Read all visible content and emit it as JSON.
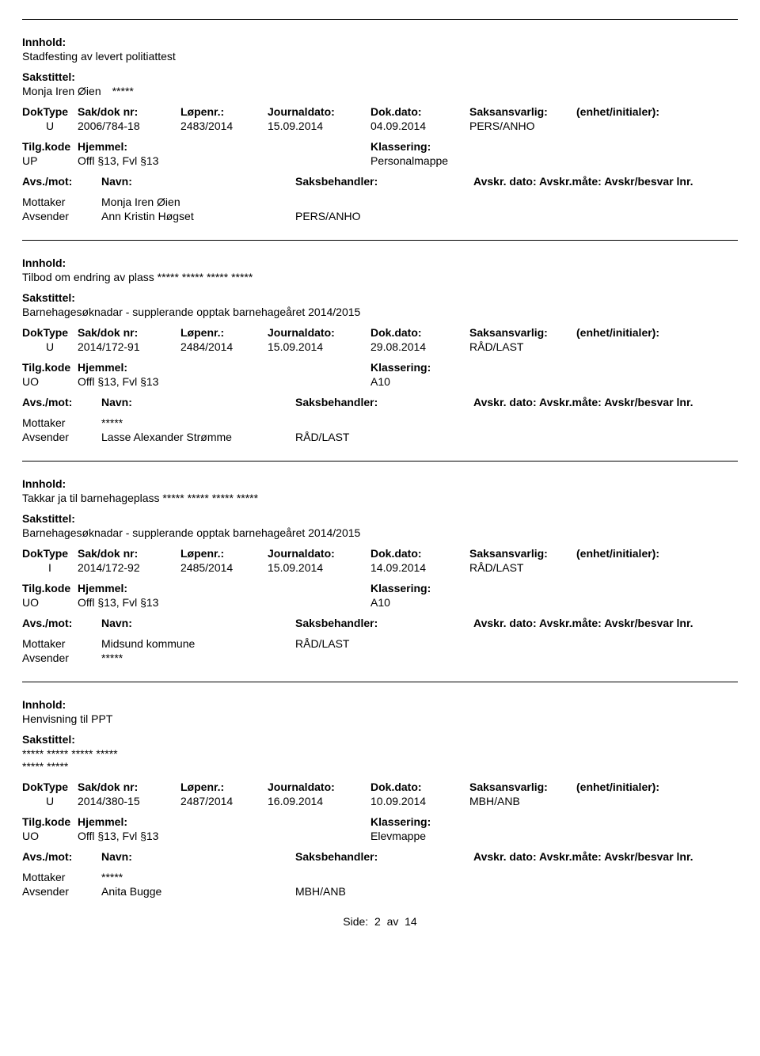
{
  "labels": {
    "innhold": "Innhold:",
    "sakstittel": "Sakstittel:",
    "doktype": "DokType",
    "sakdok": "Sak/dok nr:",
    "lopenr": "Løpenr.:",
    "journaldato": "Journaldato:",
    "dokdato": "Dok.dato:",
    "saksansvarlig": "Saksansvarlig:",
    "enhet": "(enhet/initialer):",
    "tilgkode": "Tilg.kode",
    "hjemmel": "Hjemmel:",
    "klassering": "Klassering:",
    "avsmot": "Avs./mot:",
    "navn": "Navn:",
    "saksbehandler": "Saksbehandler:",
    "avskr": "Avskr. dato: Avskr.måte: Avskr/besvar lnr.",
    "mottaker": "Mottaker",
    "avsender": "Avsender"
  },
  "records": [
    {
      "innhold": "Stadfesting av levert politiattest",
      "sakstittel": "Monja Iren Øien *****",
      "doktype": "U",
      "sakdok": "2006/784-18",
      "lopenr": "2483/2014",
      "journaldato": "15.09.2014",
      "dokdato": "04.09.2014",
      "saksansvarlig": "PERS/ANHO",
      "tilgkode": "UP",
      "hjemmel": "Offl §13, Fvl §13",
      "klassering": "Personalmappe",
      "people": [
        {
          "role": "Mottaker",
          "name": "Monja Iren Øien",
          "code": ""
        },
        {
          "role": "Avsender",
          "name": "Ann Kristin Høgset",
          "code": "PERS/ANHO"
        }
      ]
    },
    {
      "innhold": "Tilbod om endring av plass ***** ***** ***** *****",
      "sakstittel": "Barnehagesøknadar - supplerande opptak barnehageåret 2014/2015",
      "doktype": "U",
      "sakdok": "2014/172-91",
      "lopenr": "2484/2014",
      "journaldato": "15.09.2014",
      "dokdato": "29.08.2014",
      "saksansvarlig": "RÅD/LAST",
      "tilgkode": "UO",
      "hjemmel": "Offl §13, Fvl §13",
      "klassering": "A10",
      "people": [
        {
          "role": "Mottaker",
          "name": "*****",
          "code": ""
        },
        {
          "role": "Avsender",
          "name": "Lasse Alexander Strømme",
          "code": "RÅD/LAST"
        }
      ]
    },
    {
      "innhold": "Takkar ja til barnehageplass ***** ***** ***** *****",
      "sakstittel": "Barnehagesøknadar - supplerande opptak barnehageåret 2014/2015",
      "doktype": "I",
      "sakdok": "2014/172-92",
      "lopenr": "2485/2014",
      "journaldato": "15.09.2014",
      "dokdato": "14.09.2014",
      "saksansvarlig": "RÅD/LAST",
      "tilgkode": "UO",
      "hjemmel": "Offl §13, Fvl §13",
      "klassering": "A10",
      "people": [
        {
          "role": "Mottaker",
          "name": "Midsund kommune",
          "code": "RÅD/LAST"
        },
        {
          "role": "Avsender",
          "name": "*****",
          "code": ""
        }
      ]
    },
    {
      "innhold": "Henvisning til PPT",
      "sakstittel": "***** ***** ***** *****\n***** *****",
      "doktype": "U",
      "sakdok": "2014/380-15",
      "lopenr": "2487/2014",
      "journaldato": "16.09.2014",
      "dokdato": "10.09.2014",
      "saksansvarlig": "MBH/ANB",
      "tilgkode": "UO",
      "hjemmel": "Offl §13, Fvl §13",
      "klassering": "Elevmappe",
      "people": [
        {
          "role": "Mottaker",
          "name": "*****",
          "code": ""
        },
        {
          "role": "Avsender",
          "name": "Anita Bugge",
          "code": "MBH/ANB"
        }
      ]
    }
  ],
  "pager": {
    "label": "Side:",
    "current": "2",
    "sep": "av",
    "total": "14"
  }
}
